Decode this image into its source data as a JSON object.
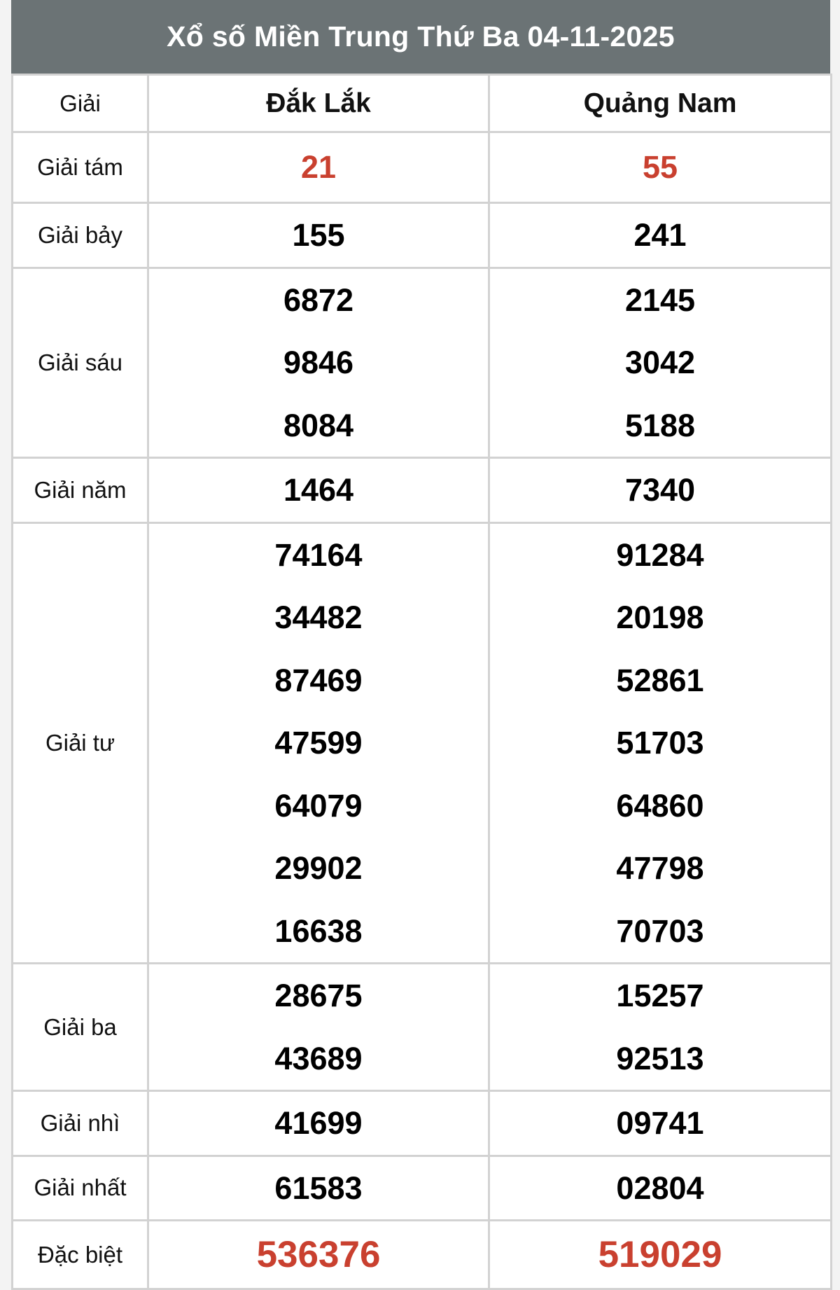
{
  "title": "Xổ số Miền Trung Thứ Ba 04-11-2025",
  "header": {
    "label": "Giải",
    "provinces": [
      "Đắk Lắk",
      "Quảng Nam"
    ]
  },
  "colors": {
    "header_bg": "#6b7375",
    "highlight": "#c9402f"
  },
  "rows": [
    {
      "label": "Giải tám",
      "values": [
        [
          "21"
        ],
        [
          "55"
        ]
      ],
      "highlight": true,
      "height": 101
    },
    {
      "label": "Giải bảy",
      "values": [
        [
          "155"
        ],
        [
          "241"
        ]
      ],
      "height": 91
    },
    {
      "label": "Giải sáu",
      "values": [
        [
          "6872",
          "9846",
          "8084"
        ],
        [
          "2145",
          "3042",
          "5188"
        ]
      ],
      "height": 270
    },
    {
      "label": "Giải năm",
      "values": [
        [
          "1464"
        ],
        [
          "7340"
        ]
      ],
      "height": 91
    },
    {
      "label": "Giải tư",
      "values": [
        [
          "74164",
          "34482",
          "87469",
          "47599",
          "64079",
          "29902",
          "16638"
        ],
        [
          "91284",
          "20198",
          "52861",
          "51703",
          "64860",
          "47798",
          "70703"
        ]
      ],
      "height": 627
    },
    {
      "label": "Giải ba",
      "values": [
        [
          "28675",
          "43689"
        ],
        [
          "15257",
          "92513"
        ]
      ],
      "height": 181
    },
    {
      "label": "Giải nhì",
      "values": [
        [
          "41699"
        ],
        [
          "09741"
        ]
      ],
      "height": 91
    },
    {
      "label": "Giải nhất",
      "values": [
        [
          "61583"
        ],
        [
          "02804"
        ]
      ],
      "height": 91
    },
    {
      "label": "Đặc biệt",
      "values": [
        [
          "536376"
        ],
        [
          "519029"
        ]
      ],
      "highlight": true,
      "big": true,
      "height": 98
    }
  ]
}
